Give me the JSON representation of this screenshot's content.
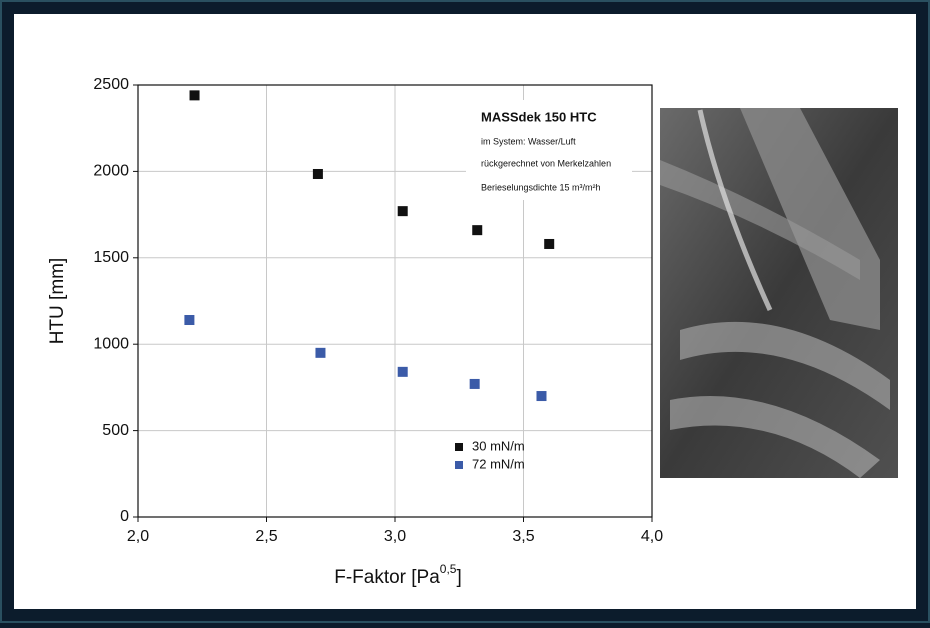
{
  "chart_data": {
    "type": "scatter",
    "xlabel": [
      "F-Faktor [Pa",
      "0,5",
      "]"
    ],
    "ylabel": "HTU [mm]",
    "annotations": [
      "MASSdek 150 HTC",
      "im System: Wasser/Luft",
      "rückgerechnet von Merkelzahlen",
      "Berieselungsdichte 15 m³/m²h"
    ],
    "xlim": [
      2,
      4
    ],
    "xticks": [
      {
        "value": 2,
        "label": "2,0"
      },
      {
        "value": 2.5,
        "label": "2,5"
      },
      {
        "value": 3,
        "label": "3,0"
      },
      {
        "value": 3.5,
        "label": "3,5"
      },
      {
        "value": 4,
        "label": "4,0"
      }
    ],
    "ylim": [
      0,
      2500
    ],
    "yticks": [
      0,
      500,
      1000,
      1500,
      2000,
      2500
    ],
    "grid": true,
    "legend": "lower right",
    "series": [
      {
        "name": "30 mN/m",
        "color": "#111111",
        "x": [
          2.22,
          2.7,
          3.03,
          3.32,
          3.6
        ],
        "values": [
          2440,
          1985,
          1770,
          1660,
          1580
        ]
      },
      {
        "name": "72 mN/m",
        "color": "#3b5ba8",
        "x": [
          2.2,
          2.71,
          3.03,
          3.31,
          3.57
        ],
        "values": [
          1140,
          950,
          840,
          770,
          700
        ]
      }
    ]
  }
}
